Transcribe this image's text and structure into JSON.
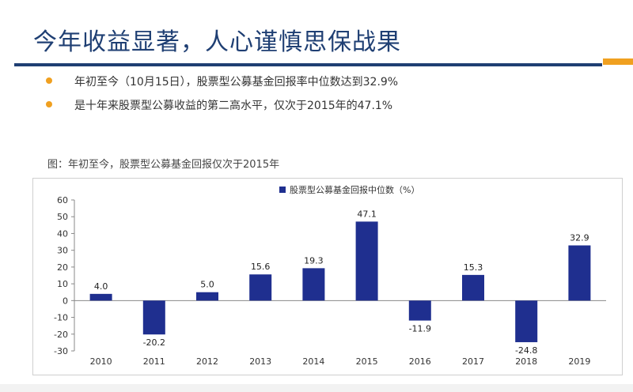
{
  "slide": {
    "title": "今年收益显著，人心谨慎思保战果",
    "bullets": [
      "年初至今（10月15日），股票型公募基金回报率中位数达到32.9%",
      "是十年来股票型公募收益的第二高水平，仅次于2015年的47.1%"
    ],
    "chart_caption": "图：年初至今，股票型公募基金回报仅次于2015年"
  },
  "colors": {
    "title": "#1f3f73",
    "bar": "#1f2f8f",
    "bullet": "#f0a020",
    "accent": "#f0a020"
  },
  "chart_data": {
    "type": "bar",
    "categories": [
      "2010",
      "2011",
      "2012",
      "2013",
      "2014",
      "2015",
      "2016",
      "2017",
      "2018",
      "2019"
    ],
    "series": [
      {
        "name": "股票型公募基金回报中位数（%）",
        "values": [
          4.0,
          -20.2,
          5.0,
          15.6,
          19.3,
          47.1,
          -11.9,
          15.3,
          -24.8,
          32.9
        ]
      }
    ],
    "data_labels": [
      "4.0",
      "-20.2",
      "5.0",
      "15.6",
      "19.3",
      "47.1",
      "-11.9",
      "15.3",
      "-24.8",
      "32.9"
    ],
    "ylim": [
      -30,
      60
    ],
    "yticks": [
      -30,
      -20,
      -10,
      0,
      10,
      20,
      30,
      40,
      50,
      60
    ],
    "legend_position": "top-center",
    "grid": false,
    "title": "",
    "xlabel": "",
    "ylabel": ""
  }
}
